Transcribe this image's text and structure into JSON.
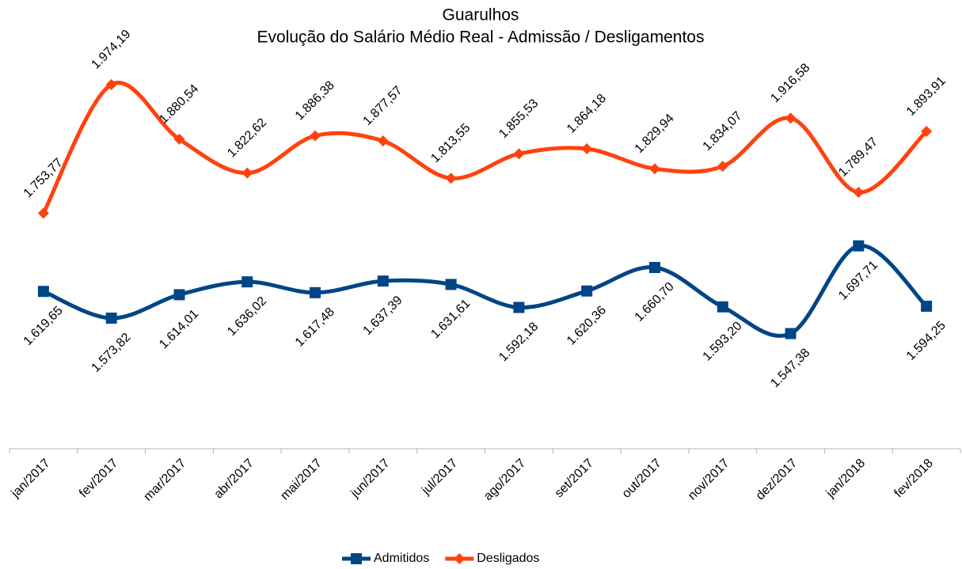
{
  "chart_data": {
    "type": "line",
    "title": "Guarulhos",
    "subtitle": "Evolução do Salário Médio Real - Admissão / Desligamentos",
    "categories": [
      "jan/2017",
      "fev/2017",
      "mar/2017",
      "abr/2017",
      "mai/2017",
      "jun/2017",
      "jul/2017",
      "ago/2017",
      "set/2017",
      "out/2017",
      "nov/2017",
      "dez/2017",
      "jan/2018",
      "fev/2018"
    ],
    "ylim": [
      1350,
      2050
    ],
    "smooth": true,
    "series": [
      {
        "name": "Admitidos",
        "color": "#004586",
        "marker": "square",
        "values": [
          1619.65,
          1573.82,
          1614.01,
          1636.02,
          1617.48,
          1637.39,
          1631.61,
          1592.18,
          1620.36,
          1660.7,
          1593.2,
          1547.38,
          1697.71,
          1594.25
        ],
        "value_labels": [
          "1.619,65",
          "1.573,82",
          "1.614,01",
          "1.636,02",
          "1.617,48",
          "1.637,39",
          "1.631,61",
          "1.592,18",
          "1.620,36",
          "1.660,70",
          "1.593,20",
          "1.547,38",
          "1.697,71",
          "1.594,25"
        ]
      },
      {
        "name": "Desligados",
        "color": "#ff420e",
        "marker": "diamond",
        "values": [
          1753.77,
          1974.19,
          1880.54,
          1822.62,
          1886.38,
          1877.57,
          1813.55,
          1855.53,
          1864.18,
          1829.94,
          1834.07,
          1916.58,
          1789.47,
          1893.91
        ],
        "value_labels": [
          "1.753,77",
          "1.974,19",
          "1.880,54",
          "1.822,62",
          "1.886,38",
          "1.877,57",
          "1.813,55",
          "1.855,53",
          "1.864,18",
          "1.829,94",
          "1.834,07",
          "1.916,58",
          "1.789,47",
          "1.893,91"
        ]
      }
    ]
  }
}
